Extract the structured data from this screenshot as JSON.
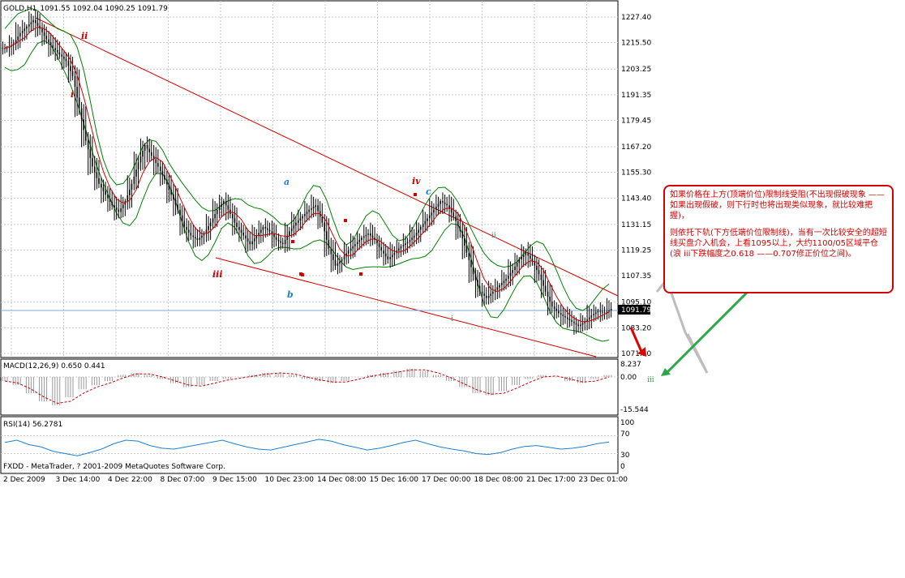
{
  "header": {
    "symbol": "GOLD,H1",
    "ohlc": "1091.55 1092.04 1090.25 1091.79"
  },
  "macd": {
    "title": "MACD(12,26,9) 0.650 0.441",
    "scale_top": "8.237",
    "scale_mid": "0.00",
    "scale_bottom": "-15.544"
  },
  "rsi": {
    "title": "RSI(14) 56.2781",
    "scale": [
      "100",
      "70",
      "30",
      "0"
    ]
  },
  "copyright": "FXDD - MetaTrader, ? 2001-2009 MetaQuotes Software Corp.",
  "price_axis": [
    "1227.40",
    "1215.50",
    "1203.25",
    "1191.35",
    "1179.45",
    "1167.20",
    "1155.30",
    "1143.40",
    "1131.15",
    "1119.25",
    "1107.35",
    "1095.10",
    "1083.20",
    "1071.30"
  ],
  "current_price": "1091.79",
  "wave_labels": {
    "ii": "ii",
    "i": "i",
    "iii": "iii",
    "a": "a",
    "b": "b",
    "iv": "iv",
    "c": "c",
    "small_ii": "ii",
    "small_i": "i",
    "small_iii": "iii"
  },
  "annotation": {
    "para1": "如果价格在上方(顶端价位)限制线受阻(不出现假破现象 ——如果出现假破，则下行时也将出现类似现象，就比较难把握)，",
    "para2": "则依托下轨(下方低端价位限制线)，当有一次比较安全的超短线买盘介入机会，上看1095以上，大约1100/05区域平仓(浪 iii下跌幅度之0.618 ——0.707修正价位之间)。"
  },
  "colors": {
    "candle": "#000000",
    "bollinger": "#008000",
    "ma": "#cc0000",
    "channel": "#d40000",
    "rsi": "#1e7fd0",
    "arrow_green": "#2aa84a",
    "arrow_gray": "#b8b8b8"
  },
  "chart_data": {
    "type": "candlestick",
    "title": "GOLD,H1",
    "x_ticks": [
      "2 Dec 2009",
      "3 Dec 14:00",
      "4 Dec 22:00",
      "8 Dec 07:00",
      "9 Dec 15:00",
      "10 Dec 23:00",
      "14 Dec 08:00",
      "15 Dec 16:00",
      "17 Dec 00:00",
      "18 Dec 08:00",
      "21 Dec 17:00",
      "23 Dec 01:00"
    ],
    "ylim": [
      1071.3,
      1227.4
    ],
    "close_path": [
      1213,
      1215,
      1220,
      1223,
      1226,
      1222,
      1217,
      1213,
      1210,
      1207,
      1200,
      1185,
      1170,
      1158,
      1150,
      1145,
      1140,
      1137,
      1142,
      1150,
      1160,
      1168,
      1163,
      1158,
      1152,
      1145,
      1138,
      1130,
      1126,
      1124,
      1127,
      1132,
      1138,
      1142,
      1136,
      1130,
      1126,
      1122,
      1126,
      1130,
      1128,
      1124,
      1122,
      1128,
      1132,
      1135,
      1138,
      1140,
      1132,
      1120,
      1112,
      1115,
      1119,
      1122,
      1125,
      1127,
      1124,
      1119,
      1115,
      1118,
      1121,
      1123,
      1126,
      1130,
      1134,
      1138,
      1142,
      1140,
      1135,
      1128,
      1118,
      1108,
      1100,
      1097,
      1100,
      1103,
      1106,
      1110,
      1115,
      1118,
      1114,
      1108,
      1100,
      1093,
      1090,
      1088,
      1086,
      1084,
      1086,
      1089,
      1091,
      1090,
      1092
    ],
    "indicators": [
      "Bollinger Bands",
      "Moving Average",
      "MACD(12,26,9)",
      "RSI(14)"
    ],
    "macd_hist": [
      -2,
      -4,
      -8,
      -12,
      -14,
      -10,
      -6,
      -4,
      -2,
      1,
      2,
      1,
      -1,
      -3,
      -5,
      -4,
      -2,
      -1,
      0,
      1,
      2,
      2,
      1,
      -1,
      -2,
      -3,
      -2,
      0,
      1,
      2,
      3,
      4,
      3,
      1,
      -2,
      -5,
      -8,
      -9,
      -7,
      -4,
      -1,
      1,
      0,
      -2,
      -3,
      -1,
      1
    ],
    "rsi_values": [
      55,
      60,
      50,
      45,
      35,
      30,
      25,
      32,
      40,
      52,
      60,
      58,
      48,
      42,
      40,
      45,
      50,
      55,
      60,
      52,
      45,
      40,
      38,
      44,
      50,
      56,
      62,
      58,
      50,
      44,
      38,
      42,
      48,
      55,
      60,
      52,
      45,
      40,
      36,
      30,
      28,
      32,
      40,
      46,
      48,
      44,
      40,
      42,
      46,
      52,
      56
    ]
  }
}
